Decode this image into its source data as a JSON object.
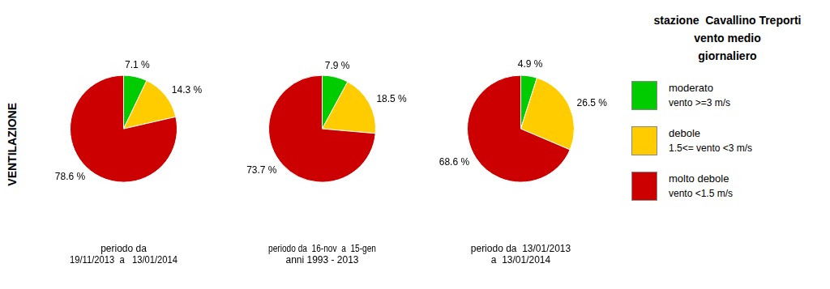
{
  "chart_data": {
    "type": "pie",
    "ylabel": "VENTILAZIONE",
    "legend": "right",
    "legend_title": [
      "stazione  Cavallino Treporti",
      "vento medio",
      "giornaliero"
    ],
    "categories": [
      [
        "moderato",
        "vento >=3 m/s"
      ],
      [
        "debole",
        "1.5<= vento <3 m/s"
      ],
      [
        "molto debole",
        "vento <1.5 m/s"
      ]
    ],
    "colors": [
      "#00cc00",
      "#ffcc00",
      "#cc0000"
    ],
    "data_labels": true,
    "series": [
      {
        "title": [
          "periodo da",
          "19/11/2013  a   13/01/2014"
        ],
        "values": [
          7.1,
          14.3,
          78.6
        ],
        "value_labels": [
          "7.1 %",
          "14.3 %",
          "78.6 %"
        ]
      },
      {
        "title": [
          "periodo da  16-nov  a  15-gen",
          "anni 1993 - 2013"
        ],
        "values": [
          7.9,
          18.5,
          73.7
        ],
        "value_labels": [
          "7.9 %",
          "18.5 %",
          "73.7 %"
        ]
      },
      {
        "title": [
          "periodo da  13/01/2013",
          "a  13/01/2014"
        ],
        "values": [
          4.9,
          26.5,
          68.6
        ],
        "value_labels": [
          "4.9 %",
          "26.5 %",
          "68.6 %"
        ]
      }
    ]
  }
}
